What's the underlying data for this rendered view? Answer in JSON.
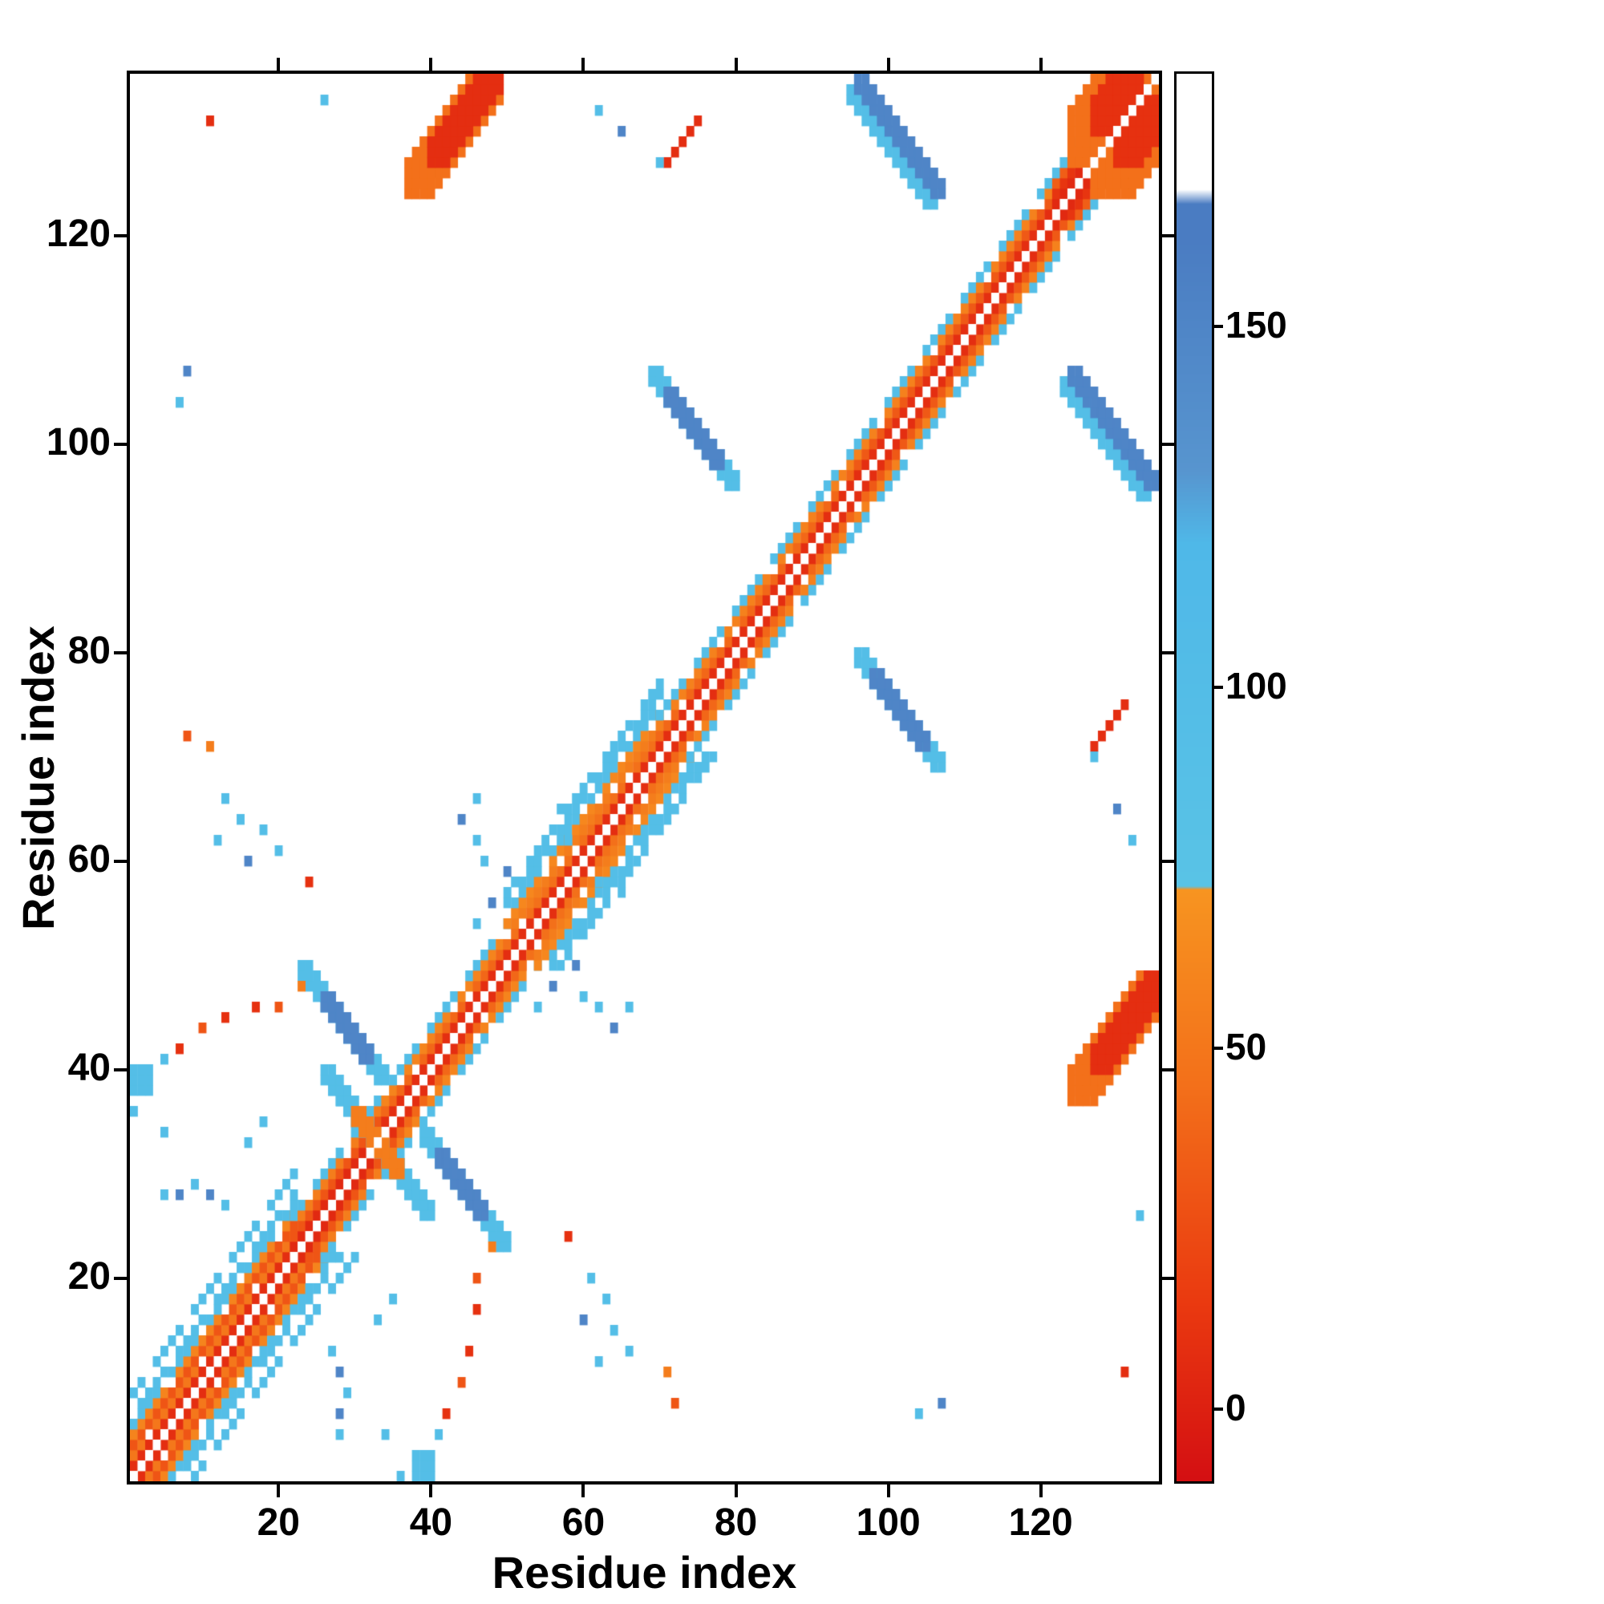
{
  "figure": {
    "background": "#ffffff",
    "frame_color": "#000000"
  },
  "chart_data": {
    "type": "heatmap",
    "title": "",
    "xlabel": "Residue index",
    "ylabel": "Residue index",
    "n_residues": 135,
    "x_range": [
      1,
      135
    ],
    "y_range": [
      1,
      135
    ],
    "x_ticks": [
      20,
      40,
      60,
      80,
      100,
      120
    ],
    "y_ticks": [
      20,
      40,
      60,
      80,
      100,
      120
    ],
    "symmetric": true,
    "grid": false,
    "colorbar": {
      "ticks": [
        0,
        50,
        100,
        150
      ],
      "vmin": -10,
      "vmax": 185,
      "position": "right"
    },
    "colormap": [
      [
        -10,
        "#d40f12"
      ],
      [
        15,
        "#ea3a10"
      ],
      [
        45,
        "#f3701a"
      ],
      [
        72,
        "#f79420"
      ],
      [
        72.5,
        "#59c3e6"
      ],
      [
        120,
        "#4fb8e8"
      ],
      [
        130,
        "#5795cf"
      ],
      [
        162,
        "#4a7cc2"
      ],
      [
        167,
        "#4a7cc2"
      ],
      [
        169,
        "#ffffff"
      ],
      [
        185,
        "#ffffff"
      ]
    ],
    "diagonal_bands": [
      {
        "from": 1,
        "to": 22,
        "stripes": [
          [
            1,
            8
          ],
          [
            2,
            50
          ],
          [
            3,
            30
          ],
          [
            4,
            60
          ],
          [
            5,
            95
          ],
          [
            6,
            95
          ],
          [
            8,
            95
          ]
        ]
      },
      {
        "from": 22,
        "to": 34,
        "stripes": [
          [
            1,
            5
          ],
          [
            2,
            30
          ],
          [
            3,
            55
          ],
          [
            4,
            95
          ]
        ]
      },
      {
        "from": 34,
        "to": 50,
        "stripes": [
          [
            1,
            8
          ],
          [
            2,
            40
          ],
          [
            3,
            60
          ],
          [
            4,
            95
          ]
        ]
      },
      {
        "from": 50,
        "to": 70,
        "stripes": [
          [
            1,
            8
          ],
          [
            2,
            45
          ],
          [
            3,
            55
          ],
          [
            4,
            62
          ],
          [
            5,
            95
          ],
          [
            6,
            95
          ],
          [
            7,
            95
          ]
        ]
      },
      {
        "from": 70,
        "to": 96,
        "stripes": [
          [
            1,
            8
          ],
          [
            2,
            40
          ],
          [
            3,
            58
          ],
          [
            4,
            95
          ]
        ]
      },
      {
        "from": 96,
        "to": 122,
        "stripes": [
          [
            1,
            8
          ],
          [
            2,
            32
          ],
          [
            3,
            58
          ],
          [
            4,
            95
          ]
        ]
      },
      {
        "from": 122,
        "to": 135,
        "stripes": [
          [
            1,
            5
          ],
          [
            2,
            12
          ],
          [
            3,
            35
          ],
          [
            4,
            95
          ]
        ]
      }
    ],
    "segments": [
      [
        24,
        50,
        1,
        -1,
        11,
        2,
        95
      ],
      [
        27,
        47,
        1,
        -1,
        6,
        2,
        150
      ],
      [
        27,
        40,
        1,
        -1,
        13,
        2,
        95
      ],
      [
        31,
        36,
        1,
        -1,
        4,
        2,
        55
      ],
      [
        70,
        107,
        1,
        -1,
        11,
        2,
        95
      ],
      [
        72,
        105,
        1,
        -1,
        7,
        2,
        150
      ],
      [
        96,
        134,
        1,
        -1,
        11,
        2,
        95
      ],
      [
        97,
        135,
        1,
        -1,
        11,
        2,
        150
      ],
      [
        39,
        126,
        1,
        1,
        10,
        4,
        45
      ],
      [
        41,
        128,
        1,
        1,
        8,
        3,
        8
      ],
      [
        71,
        127,
        1,
        1,
        5,
        1,
        8
      ],
      [
        127,
        130,
        1,
        1,
        6,
        6,
        45
      ],
      [
        129,
        132,
        1,
        1,
        4,
        4,
        10
      ]
    ],
    "dots": [
      [
        2,
        39,
        95,
        3
      ],
      [
        1,
        36,
        95
      ],
      [
        5,
        41,
        95
      ],
      [
        7,
        42,
        10
      ],
      [
        10,
        44,
        30
      ],
      [
        13,
        45,
        10
      ],
      [
        17,
        46,
        10
      ],
      [
        20,
        46,
        30
      ],
      [
        23,
        48,
        55
      ],
      [
        5,
        34,
        95
      ],
      [
        5,
        28,
        95
      ],
      [
        7,
        28,
        150
      ],
      [
        9,
        29,
        95
      ],
      [
        11,
        28,
        150
      ],
      [
        13,
        27,
        95
      ],
      [
        16,
        33,
        95
      ],
      [
        18,
        35,
        95
      ],
      [
        12,
        62,
        95
      ],
      [
        13,
        66,
        95
      ],
      [
        15,
        64,
        95
      ],
      [
        16,
        60,
        150
      ],
      [
        18,
        63,
        95
      ],
      [
        20,
        61,
        95
      ],
      [
        24,
        58,
        10
      ],
      [
        8,
        72,
        30
      ],
      [
        11,
        71,
        55
      ],
      [
        11,
        131,
        8
      ],
      [
        7,
        104,
        95
      ],
      [
        8,
        107,
        150
      ],
      [
        26,
        133,
        95
      ],
      [
        46,
        54,
        95
      ],
      [
        48,
        56,
        150
      ],
      [
        50,
        59,
        150
      ],
      [
        60,
        47,
        95
      ],
      [
        62,
        46,
        95
      ],
      [
        64,
        44,
        150
      ],
      [
        66,
        46,
        95
      ],
      [
        62,
        132,
        95
      ],
      [
        65,
        130,
        150
      ],
      [
        70,
        127,
        95
      ],
      [
        58,
        62,
        95
      ],
      [
        57,
        65,
        95
      ]
    ]
  }
}
